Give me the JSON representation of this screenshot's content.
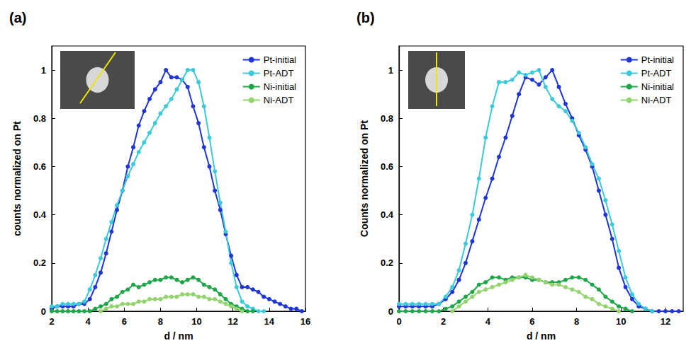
{
  "chart_data": [
    {
      "type": "line",
      "title": "(a)",
      "x_label": "d / nm",
      "y_label": "counts normalized on Pt",
      "xlim": [
        2,
        16
      ],
      "xticks": [
        2,
        4,
        6,
        8,
        10,
        12,
        14,
        16
      ],
      "ylim": [
        0,
        1.1
      ],
      "yticks": [
        0,
        0.2,
        0.4,
        0.6,
        0.8,
        1
      ],
      "grid": false,
      "legend": "upper right",
      "marker": "circle",
      "series": [
        {
          "name": "Pt-initial",
          "color": "#1f35d6",
          "x": [
            2.0,
            2.3,
            2.6,
            2.9,
            3.2,
            3.5,
            3.8,
            4.1,
            4.4,
            4.7,
            5.0,
            5.3,
            5.6,
            5.9,
            6.2,
            6.5,
            6.8,
            7.1,
            7.4,
            7.7,
            8.0,
            8.3,
            8.6,
            8.9,
            9.2,
            9.5,
            9.8,
            10.1,
            10.4,
            10.7,
            11.0,
            11.3,
            11.6,
            11.9,
            12.2,
            12.5,
            12.8,
            13.1,
            13.4,
            13.7,
            14.0,
            14.3,
            14.6,
            14.9,
            15.2,
            15.5,
            15.8
          ],
          "values": [
            0.01,
            0.02,
            0.02,
            0.02,
            0.02,
            0.03,
            0.03,
            0.05,
            0.1,
            0.16,
            0.24,
            0.33,
            0.42,
            0.5,
            0.6,
            0.68,
            0.77,
            0.83,
            0.88,
            0.92,
            0.95,
            1.0,
            0.97,
            0.97,
            0.96,
            0.93,
            0.85,
            0.78,
            0.68,
            0.6,
            0.5,
            0.42,
            0.32,
            0.23,
            0.15,
            0.1,
            0.1,
            0.09,
            0.08,
            0.06,
            0.05,
            0.04,
            0.03,
            0.02,
            0.01,
            0.01,
            0.0
          ]
        },
        {
          "name": "Pt-ADT",
          "color": "#3cc9d9",
          "x": [
            2.0,
            2.3,
            2.6,
            2.9,
            3.2,
            3.5,
            3.8,
            4.1,
            4.4,
            4.7,
            5.0,
            5.3,
            5.6,
            5.9,
            6.2,
            6.5,
            6.8,
            7.1,
            7.4,
            7.7,
            8.0,
            8.3,
            8.6,
            8.9,
            9.2,
            9.5,
            9.8,
            10.1,
            10.4,
            10.7,
            11.0,
            11.3,
            11.6,
            11.9,
            12.2,
            12.5,
            12.8,
            13.1,
            13.4,
            13.7
          ],
          "values": [
            0.02,
            0.02,
            0.03,
            0.03,
            0.03,
            0.03,
            0.04,
            0.09,
            0.15,
            0.22,
            0.3,
            0.37,
            0.44,
            0.5,
            0.56,
            0.61,
            0.66,
            0.7,
            0.74,
            0.78,
            0.82,
            0.85,
            0.88,
            0.92,
            0.96,
            1.0,
            1.0,
            0.95,
            0.85,
            0.72,
            0.58,
            0.45,
            0.33,
            0.2,
            0.1,
            0.04,
            0.02,
            0.01,
            0.0,
            0.0
          ]
        },
        {
          "name": "Ni-initial",
          "color": "#1fa64a",
          "x": [
            2.0,
            2.3,
            2.6,
            2.9,
            3.2,
            3.5,
            3.8,
            4.1,
            4.4,
            4.7,
            5.0,
            5.3,
            5.6,
            5.9,
            6.2,
            6.5,
            6.8,
            7.1,
            7.4,
            7.7,
            8.0,
            8.3,
            8.6,
            8.9,
            9.2,
            9.5,
            9.8,
            10.1,
            10.4,
            10.7,
            11.0,
            11.3,
            11.6,
            11.9,
            12.2,
            12.5,
            12.8,
            13.1
          ],
          "values": [
            0.0,
            0.0,
            0.0,
            0.0,
            0.0,
            0.0,
            0.0,
            0.0,
            0.01,
            0.02,
            0.03,
            0.05,
            0.06,
            0.08,
            0.09,
            0.11,
            0.1,
            0.11,
            0.12,
            0.13,
            0.13,
            0.14,
            0.14,
            0.13,
            0.12,
            0.13,
            0.14,
            0.13,
            0.11,
            0.1,
            0.09,
            0.07,
            0.05,
            0.03,
            0.02,
            0.01,
            0.0,
            0.0
          ]
        },
        {
          "name": "Ni-ADT",
          "color": "#92d36e",
          "x": [
            4.7,
            5.0,
            5.3,
            5.6,
            5.9,
            6.2,
            6.5,
            6.8,
            7.1,
            7.4,
            7.7,
            8.0,
            8.3,
            8.6,
            8.9,
            9.2,
            9.5,
            9.8,
            10.1,
            10.4,
            10.7,
            11.0,
            11.3,
            11.6,
            11.9,
            12.2,
            12.5
          ],
          "values": [
            0.0,
            0.01,
            0.02,
            0.02,
            0.03,
            0.03,
            0.03,
            0.04,
            0.04,
            0.05,
            0.05,
            0.05,
            0.06,
            0.06,
            0.06,
            0.07,
            0.07,
            0.07,
            0.06,
            0.06,
            0.05,
            0.05,
            0.04,
            0.03,
            0.02,
            0.01,
            0.0
          ]
        }
      ]
    },
    {
      "type": "line",
      "title": "(b)",
      "x_label": "d / nm",
      "y_label": "Counts normalized on Pt",
      "xlim": [
        0,
        12.8
      ],
      "xticks": [
        0,
        2,
        4,
        6,
        8,
        10,
        12
      ],
      "ylim": [
        0,
        1.1
      ],
      "yticks": [
        0,
        0.2,
        0.4,
        0.6,
        0.8,
        1
      ],
      "grid": false,
      "legend": "upper right",
      "marker": "circle",
      "series": [
        {
          "name": "Pt-initial",
          "color": "#1f35d6",
          "x": [
            0,
            0.3,
            0.6,
            0.9,
            1.2,
            1.5,
            1.8,
            2.1,
            2.4,
            2.7,
            3.0,
            3.3,
            3.6,
            3.9,
            4.2,
            4.5,
            4.8,
            5.1,
            5.4,
            5.7,
            6.0,
            6.3,
            6.6,
            6.9,
            7.2,
            7.5,
            7.8,
            8.1,
            8.4,
            8.7,
            9.0,
            9.3,
            9.6,
            9.9,
            10.2,
            10.5,
            10.8,
            11.1,
            11.4,
            11.7,
            12.0,
            12.3,
            12.6
          ],
          "values": [
            0.02,
            0.02,
            0.02,
            0.02,
            0.02,
            0.02,
            0.03,
            0.05,
            0.08,
            0.13,
            0.2,
            0.29,
            0.38,
            0.47,
            0.55,
            0.64,
            0.72,
            0.81,
            0.9,
            0.97,
            0.96,
            0.94,
            0.97,
            1.0,
            0.93,
            0.86,
            0.8,
            0.73,
            0.67,
            0.6,
            0.5,
            0.4,
            0.3,
            0.18,
            0.1,
            0.05,
            0.02,
            0.01,
            0.0,
            0.0,
            0.0,
            0.0,
            0.0
          ]
        },
        {
          "name": "Pt-ADT",
          "color": "#3cc9d9",
          "x": [
            0,
            0.3,
            0.6,
            0.9,
            1.2,
            1.5,
            1.8,
            2.1,
            2.4,
            2.7,
            3.0,
            3.3,
            3.6,
            3.9,
            4.2,
            4.5,
            4.8,
            5.1,
            5.4,
            5.7,
            6.0,
            6.3,
            6.6,
            6.9,
            7.2,
            7.5,
            7.8,
            8.1,
            8.4,
            8.7,
            9.0,
            9.3,
            9.6,
            9.9,
            10.2,
            10.5,
            10.8,
            11.1,
            11.4
          ],
          "values": [
            0.03,
            0.03,
            0.03,
            0.03,
            0.03,
            0.03,
            0.03,
            0.06,
            0.1,
            0.17,
            0.28,
            0.4,
            0.55,
            0.72,
            0.85,
            0.95,
            0.95,
            0.96,
            0.99,
            0.98,
            0.99,
            1.0,
            0.93,
            0.88,
            0.85,
            0.83,
            0.79,
            0.74,
            0.68,
            0.61,
            0.55,
            0.46,
            0.36,
            0.25,
            0.14,
            0.07,
            0.03,
            0.01,
            0.0
          ]
        },
        {
          "name": "Ni-initial",
          "color": "#1fa64a",
          "x": [
            0,
            0.3,
            0.6,
            0.9,
            1.2,
            1.5,
            1.8,
            2.1,
            2.4,
            2.7,
            3.0,
            3.3,
            3.6,
            3.9,
            4.2,
            4.5,
            4.8,
            5.1,
            5.4,
            5.7,
            6.0,
            6.3,
            6.6,
            6.9,
            7.2,
            7.5,
            7.8,
            8.1,
            8.4,
            8.7,
            9.0,
            9.3,
            9.6,
            9.9,
            10.2,
            10.5
          ],
          "values": [
            0.0,
            0.0,
            0.0,
            0.0,
            0.0,
            0.0,
            0.0,
            0.01,
            0.02,
            0.04,
            0.06,
            0.08,
            0.11,
            0.12,
            0.14,
            0.14,
            0.13,
            0.14,
            0.14,
            0.14,
            0.13,
            0.13,
            0.12,
            0.12,
            0.12,
            0.13,
            0.14,
            0.14,
            0.13,
            0.11,
            0.09,
            0.06,
            0.04,
            0.02,
            0.01,
            0.0
          ]
        },
        {
          "name": "Ni-ADT",
          "color": "#92d36e",
          "x": [
            2.4,
            2.7,
            3.0,
            3.3,
            3.6,
            3.9,
            4.2,
            4.5,
            4.8,
            5.1,
            5.4,
            5.7,
            6.0,
            6.3,
            6.6,
            6.9,
            7.2,
            7.5,
            7.8,
            8.1,
            8.4,
            8.7,
            9.0,
            9.3,
            9.6,
            9.9
          ],
          "values": [
            0.0,
            0.02,
            0.04,
            0.06,
            0.08,
            0.09,
            0.1,
            0.11,
            0.12,
            0.13,
            0.14,
            0.15,
            0.14,
            0.13,
            0.12,
            0.11,
            0.11,
            0.1,
            0.09,
            0.08,
            0.06,
            0.05,
            0.03,
            0.02,
            0.01,
            0.0
          ]
        }
      ]
    }
  ]
}
